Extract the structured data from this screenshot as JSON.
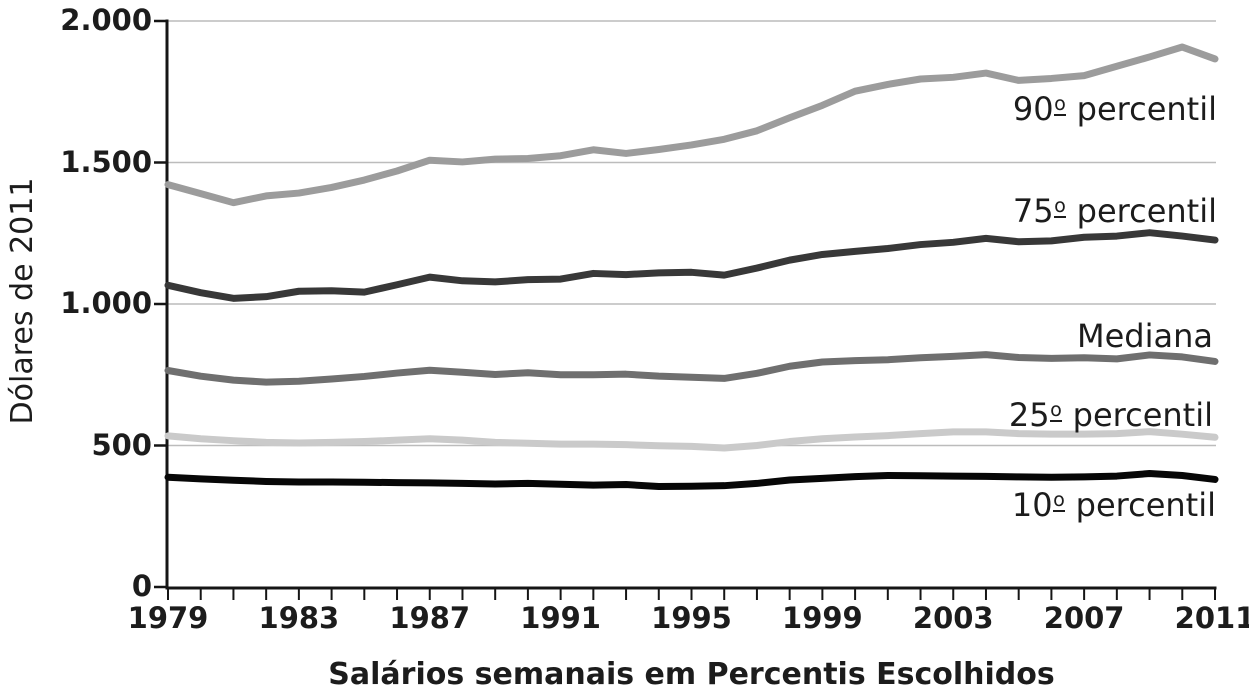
{
  "figure": {
    "y_axis_title": "Dólares de 2011",
    "x_axis_title": "Salários semanais em Percentis Escolhidos"
  },
  "chart_data": {
    "type": "line",
    "title": "",
    "xlabel": "Salários semanais em Percentis Escolhidos",
    "ylabel": "Dólares de 2011",
    "grid": "horizontal-gridlines-at-500-intervals",
    "legend_position": "inline-labels-right",
    "ylim": [
      0,
      2000
    ],
    "y_ticks": [
      {
        "value": 0,
        "label": "0"
      },
      {
        "value": 500,
        "label": "500"
      },
      {
        "value": 1000,
        "label": "1.000"
      },
      {
        "value": 1500,
        "label": "1.500"
      },
      {
        "value": 2000,
        "label": "2.000"
      }
    ],
    "x": [
      1979,
      1980,
      1981,
      1982,
      1983,
      1984,
      1985,
      1986,
      1987,
      1988,
      1989,
      1990,
      1991,
      1992,
      1993,
      1994,
      1995,
      1996,
      1997,
      1998,
      1999,
      2000,
      2001,
      2002,
      2003,
      2004,
      2005,
      2006,
      2007,
      2008,
      2009,
      2010,
      2011
    ],
    "x_labeled_ticks": [
      1979,
      1983,
      1987,
      1991,
      1995,
      1999,
      2003,
      2007,
      2011
    ],
    "x_minor_tick_interval_years": 1,
    "series": [
      {
        "name": "p90",
        "label": "90º percentil",
        "color": "#9c9c9c",
        "values": [
          1422,
          1390,
          1358,
          1382,
          1392,
          1412,
          1438,
          1470,
          1508,
          1502,
          1512,
          1514,
          1524,
          1545,
          1532,
          1546,
          1562,
          1582,
          1612,
          1658,
          1702,
          1752,
          1776,
          1795,
          1801,
          1816,
          1790,
          1797,
          1807,
          1840,
          1873,
          1908,
          1866
        ]
      },
      {
        "name": "p75",
        "label": "75º percentil",
        "color": "#383838",
        "values": [
          1066,
          1040,
          1020,
          1026,
          1045,
          1047,
          1042,
          1068,
          1095,
          1082,
          1078,
          1086,
          1088,
          1108,
          1104,
          1110,
          1112,
          1102,
          1127,
          1155,
          1175,
          1186,
          1196,
          1210,
          1218,
          1232,
          1220,
          1223,
          1236,
          1240,
          1252,
          1240,
          1226
        ]
      },
      {
        "name": "median",
        "label": "Mediana",
        "color": "#6f6f6f",
        "values": [
          765,
          745,
          731,
          724,
          727,
          735,
          744,
          756,
          766,
          759,
          751,
          757,
          750,
          750,
          752,
          745,
          741,
          737,
          755,
          780,
          795,
          800,
          803,
          810,
          815,
          821,
          811,
          808,
          810,
          806,
          820,
          813,
          797
        ]
      },
      {
        "name": "p25",
        "label": "25º percentil",
        "color": "#cacaca",
        "values": [
          534,
          524,
          517,
          511,
          509,
          511,
          514,
          519,
          524,
          519,
          511,
          508,
          505,
          505,
          503,
          499,
          497,
          491,
          500,
          514,
          524,
          530,
          535,
          542,
          548,
          548,
          542,
          540,
          540,
          542,
          549,
          540,
          529
        ]
      },
      {
        "name": "p10",
        "label": "10º percentil",
        "color": "#070707",
        "values": [
          388,
          382,
          377,
          373,
          371,
          371,
          370,
          369,
          368,
          366,
          364,
          366,
          363,
          360,
          362,
          355,
          356,
          358,
          366,
          378,
          384,
          390,
          394,
          393,
          392,
          391,
          389,
          388,
          389,
          392,
          401,
          394,
          380
        ]
      }
    ],
    "colors": {
      "grid": "#bcbcbc",
      "axis": "#151515",
      "text": "#1c1c1c",
      "background": "#ffffff"
    }
  }
}
